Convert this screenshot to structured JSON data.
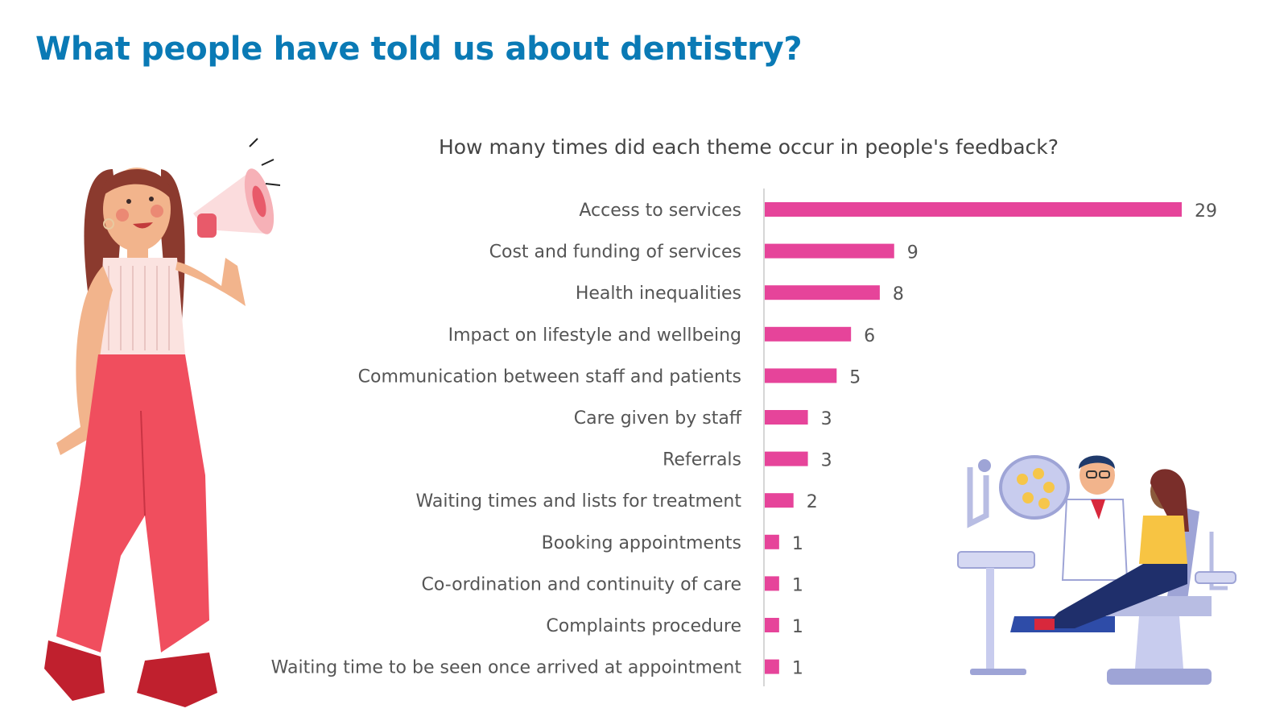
{
  "page": {
    "title": "What people have told us about dentistry?",
    "title_color": "#0A7AB5",
    "illustrations": [
      "woman-with-megaphone-illustration",
      "dentist-with-patient-illustration"
    ]
  },
  "chart_data": {
    "type": "bar",
    "orientation": "horizontal",
    "title": "How many times did each theme occur in people's feedback?",
    "xlabel": "",
    "ylabel": "",
    "categories": [
      "Access to services",
      "Cost and funding of services",
      "Health inequalities",
      "Impact on lifestyle and wellbeing",
      "Communication between staff and patients",
      "Care given by staff",
      "Referrals",
      "Waiting times and lists for treatment",
      "Booking appointments",
      "Co-ordination and continuity of care",
      "Complaints procedure",
      "Waiting time to be seen once arrived at appointment"
    ],
    "values": [
      29,
      9,
      8,
      6,
      5,
      3,
      3,
      2,
      1,
      1,
      1,
      1
    ],
    "xlim": [
      0,
      29
    ],
    "bar_color": "#E6449A",
    "data_labels": true,
    "grid": false
  }
}
